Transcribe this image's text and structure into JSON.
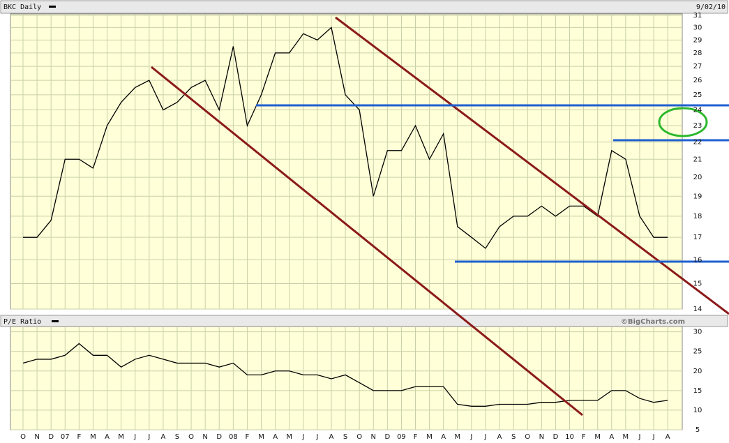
{
  "chart_data": [
    {
      "type": "line",
      "title": "BKC Daily",
      "date": "9/02/10",
      "log_scale": true,
      "grid": true,
      "color": "#000000",
      "values": [
        17,
        17,
        17.8,
        21,
        21,
        20.5,
        23,
        24.5,
        25.5,
        26,
        24,
        24.5,
        25.5,
        26,
        24,
        28.5,
        23,
        25,
        28,
        28,
        29.5,
        29,
        30,
        25,
        24,
        19,
        21.5,
        21.5,
        23,
        21,
        22.5,
        17.5,
        17,
        16.5,
        17.5,
        18,
        18,
        18.5,
        18,
        18.5,
        18.5,
        18,
        21.5,
        21,
        18,
        17,
        17
      ],
      "ylim": [
        14,
        31
      ],
      "yticks": [
        14,
        15,
        16,
        17,
        18,
        19,
        20,
        21,
        22,
        23,
        24,
        25,
        26,
        27,
        28,
        29,
        30,
        31
      ]
    },
    {
      "type": "line",
      "title": "P/E Ratio",
      "source": "©BigCharts.com",
      "grid": true,
      "color": "#000000",
      "categories": [
        "O",
        "N",
        "D",
        "07",
        "F",
        "M",
        "A",
        "M",
        "J",
        "J",
        "A",
        "S",
        "O",
        "N",
        "D",
        "08",
        "F",
        "M",
        "A",
        "M",
        "J",
        "J",
        "A",
        "S",
        "O",
        "N",
        "D",
        "09",
        "F",
        "M",
        "A",
        "M",
        "J",
        "J",
        "A",
        "S",
        "O",
        "N",
        "D",
        "10",
        "F",
        "M",
        "A",
        "M",
        "J",
        "J",
        "A"
      ],
      "values": [
        22,
        23,
        23,
        24,
        27,
        24,
        24,
        21,
        23,
        24,
        23,
        22,
        22,
        22,
        21,
        22,
        19,
        19,
        20,
        20,
        19,
        19,
        18,
        19,
        17,
        15,
        15,
        15,
        16,
        16,
        16,
        11.5,
        11,
        11,
        11.5,
        11.5,
        11.5,
        12,
        12,
        12.5,
        12.5,
        12.5,
        15,
        15,
        13,
        12,
        12.5
      ],
      "ylim": [
        5,
        31
      ],
      "yticks": [
        5,
        10,
        15,
        20,
        25,
        30
      ]
    }
  ]
}
